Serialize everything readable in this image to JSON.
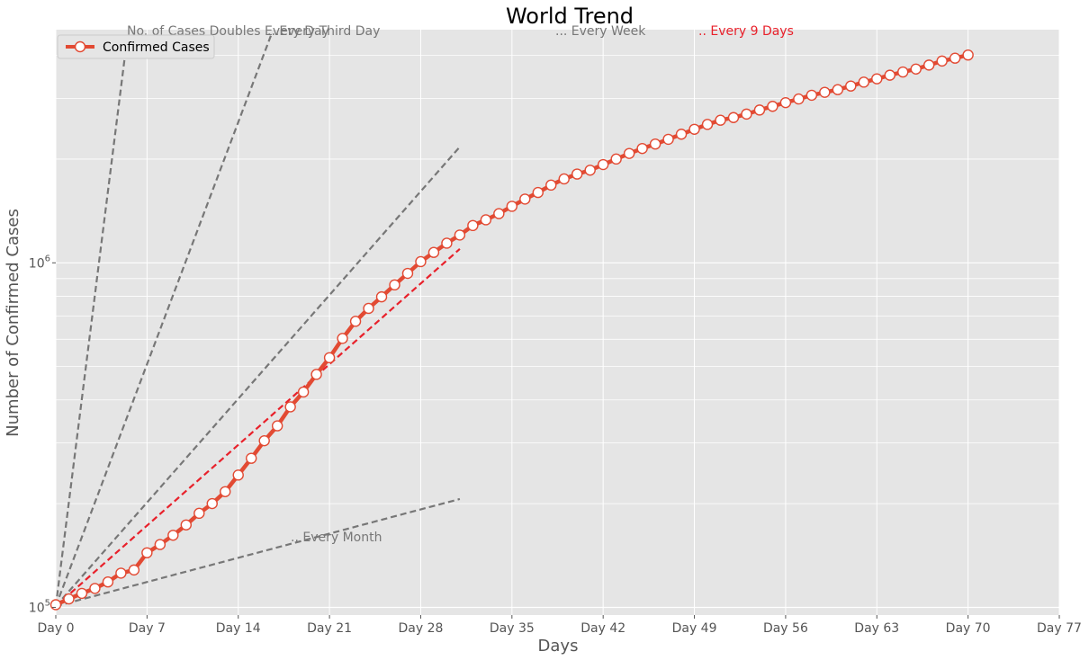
{
  "chart_data": {
    "type": "line",
    "title": "World Trend",
    "xlabel": "Days",
    "ylabel": "Number of Confirmed Cases",
    "yscale": "log",
    "xlim": [
      0,
      77
    ],
    "ylim": [
      95000,
      4750000
    ],
    "grid": true,
    "legend_position": "top-left",
    "x_ticks": [
      0,
      7,
      14,
      21,
      28,
      35,
      42,
      49,
      56,
      63,
      70,
      77
    ],
    "x_tick_labels": [
      "Day 0",
      "Day 7",
      "Day 14",
      "Day 21",
      "Day 28",
      "Day 35",
      "Day 42",
      "Day 49",
      "Day 56",
      "Day 63",
      "Day 70",
      "Day 77"
    ],
    "y_ticks": [
      {
        "value": 100000,
        "base": "10",
        "exp": "5"
      },
      {
        "value": 1000000,
        "base": "10",
        "exp": "6"
      }
    ],
    "series": [
      {
        "name": "Confirmed Cases",
        "color": "#e24a33",
        "marker_fill": "#ffffff",
        "x": [
          0,
          1,
          2,
          3,
          4,
          5,
          6,
          7,
          8,
          9,
          10,
          11,
          12,
          13,
          14,
          15,
          16,
          17,
          18,
          19,
          20,
          21,
          22,
          23,
          24,
          25,
          26,
          27,
          28,
          29,
          30,
          31,
          32,
          33,
          34,
          35,
          36,
          37,
          38,
          39,
          40,
          41,
          42,
          43,
          44,
          45,
          46,
          47,
          48,
          49,
          50,
          51,
          52,
          53,
          54,
          55,
          56,
          57,
          58,
          59,
          60,
          61,
          62,
          63,
          64,
          65,
          66,
          67,
          68,
          69,
          70
        ],
        "y": [
          101800,
          105800,
          109800,
          113500,
          118500,
          125700,
          128400,
          144000,
          152200,
          161900,
          173500,
          187500,
          200100,
          216700,
          242100,
          270800,
          304500,
          336400,
          381900,
          421800,
          474500,
          530400,
          603400,
          676400,
          737500,
          796600,
          862900,
          931800,
          1008000,
          1072000,
          1140000,
          1204000,
          1283000,
          1333000,
          1389000,
          1459000,
          1531000,
          1600000,
          1681000,
          1752000,
          1810000,
          1857000,
          1928000,
          2001000,
          2077000,
          2147000,
          2212000,
          2283000,
          2362000,
          2441000,
          2522000,
          2593000,
          2640000,
          2702000,
          2776000,
          2846000,
          2917000,
          2989000,
          3065000,
          3125000,
          3181000,
          3259000,
          3345000,
          3420000,
          3504000,
          3580000,
          3651000,
          3749000,
          3852000,
          3926000,
          4010000
        ]
      }
    ],
    "reference_lines": [
      {
        "label": "No. of Cases Doubles Every Day",
        "doubling_days": 1,
        "color": "#777777",
        "x_end": 5.4
      },
      {
        "label": "...Every Third Day",
        "doubling_days": 3,
        "color": "#777777",
        "x_end": 16.5
      },
      {
        "label": "... Every Week",
        "doubling_days": 7,
        "color": "#777777",
        "x_end": 31
      },
      {
        "label": ".. Every 9 Days",
        "doubling_days": 9,
        "color": "#e8212b",
        "x_end": 31
      },
      {
        "label": ".. Every Month",
        "doubling_days": 30,
        "color": "#777777",
        "x_end": 31
      }
    ]
  }
}
